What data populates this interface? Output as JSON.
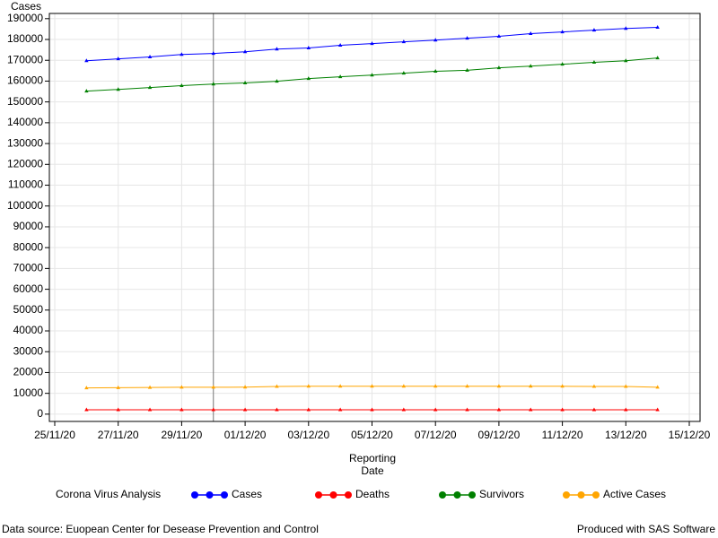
{
  "chart_data": {
    "type": "line",
    "y_label": "Cases",
    "x_label": "Reporting Date",
    "x": [
      "26/11/20",
      "27/11/20",
      "28/11/20",
      "29/11/20",
      "30/11/20",
      "01/12/20",
      "02/12/20",
      "03/12/20",
      "04/12/20",
      "05/12/20",
      "06/12/20",
      "07/12/20",
      "08/12/20",
      "09/12/20",
      "10/12/20",
      "11/12/20",
      "12/12/20",
      "13/12/20",
      "14/12/20"
    ],
    "series": [
      {
        "name": "Cases",
        "color": "#0000ff",
        "values": [
          169800,
          170700,
          171600,
          172800,
          173300,
          174100,
          175400,
          175900,
          177200,
          178000,
          178900,
          179700,
          180600,
          181500,
          182800,
          183600,
          184500,
          185300,
          185800
        ]
      },
      {
        "name": "Deaths",
        "color": "#ff0000",
        "values": [
          2100,
          2100,
          2100,
          2100,
          2100,
          2100,
          2100,
          2100,
          2100,
          2100,
          2100,
          2100,
          2100,
          2100,
          2100,
          2100,
          2100,
          2100,
          2100
        ]
      },
      {
        "name": "Survivors",
        "color": "#008000",
        "values": [
          155200,
          156000,
          156900,
          157800,
          158600,
          159100,
          159900,
          161200,
          162100,
          162900,
          163800,
          164700,
          165200,
          166400,
          167200,
          168100,
          169000,
          169800,
          171100
        ]
      },
      {
        "name": "Active Cases",
        "color": "#ffa500",
        "values": [
          12600,
          12700,
          12800,
          12900,
          12900,
          13000,
          13300,
          13400,
          13400,
          13400,
          13400,
          13400,
          13400,
          13400,
          13400,
          13400,
          13300,
          13300,
          12900
        ]
      }
    ],
    "xlim": [
      "25/11/20",
      "15/12/20"
    ],
    "xticks": [
      "25/11/20",
      "27/11/20",
      "29/11/20",
      "01/12/20",
      "03/12/20",
      "05/12/20",
      "07/12/20",
      "09/12/20",
      "11/12/20",
      "13/12/20",
      "15/12/20"
    ],
    "ylim": [
      -3500,
      192500
    ],
    "yticks": [
      0,
      10000,
      20000,
      30000,
      40000,
      50000,
      60000,
      70000,
      80000,
      90000,
      100000,
      110000,
      120000,
      130000,
      140000,
      150000,
      160000,
      170000,
      180000,
      190000
    ],
    "grid": true,
    "reference_line_x": "30/11/20",
    "legend_title": "Corona Virus Analysis",
    "legend_position": "bottom",
    "footnote_left": "Data source: Euopean Center for Desease Prevention and Control",
    "footnote_right": "Produced with SAS Software"
  }
}
